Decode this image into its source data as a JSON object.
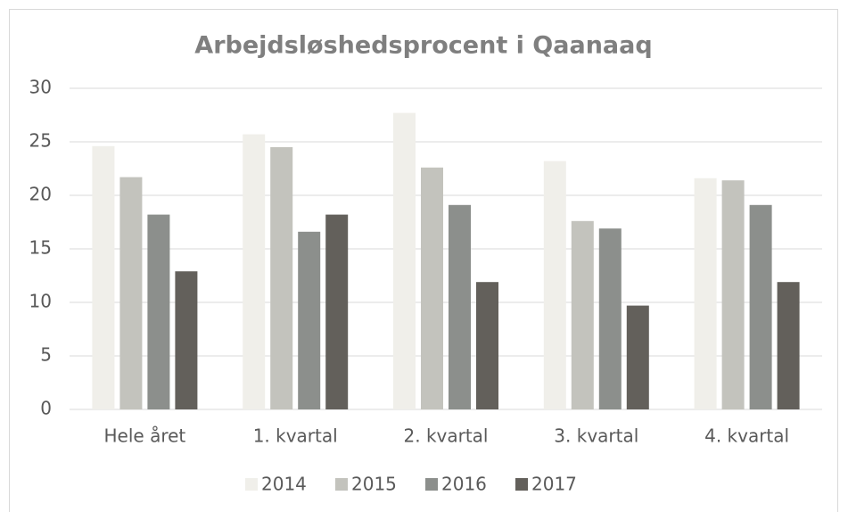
{
  "chart_data": {
    "type": "bar",
    "title": "Arbejdsløshedsprocent i Qaanaaq",
    "categories": [
      "Hele året",
      "1. kvartal",
      "2. kvartal",
      "3. kvartal",
      "4. kvartal"
    ],
    "series": [
      {
        "name": "2014",
        "color": "#f0efea",
        "values": [
          24.6,
          25.7,
          27.7,
          23.2,
          21.6
        ]
      },
      {
        "name": "2015",
        "color": "#c3c3bd",
        "values": [
          21.7,
          24.5,
          22.6,
          17.6,
          21.4
        ]
      },
      {
        "name": "2016",
        "color": "#8c8f8c",
        "values": [
          18.2,
          16.6,
          19.1,
          16.9,
          19.1
        ]
      },
      {
        "name": "2017",
        "color": "#63605b",
        "values": [
          12.9,
          18.2,
          11.9,
          9.7,
          11.9
        ]
      }
    ],
    "ylim": [
      0,
      30
    ],
    "yticks": [
      0,
      5,
      10,
      15,
      20,
      25,
      30
    ],
    "grid": true,
    "legend": "bottom"
  }
}
